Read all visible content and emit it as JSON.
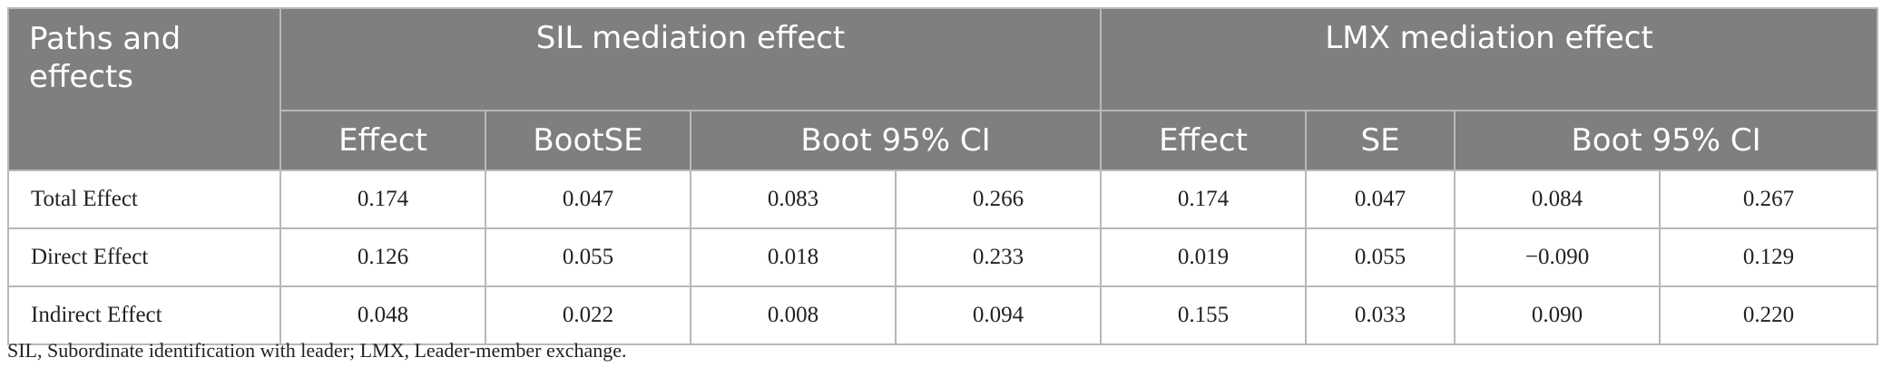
{
  "header": {
    "row_header": "Paths and effects",
    "groups": [
      "SIL mediation effect",
      "LMX mediation effect"
    ],
    "sil_subheaders": [
      "Effect",
      "BootSE",
      "Boot 95% CI"
    ],
    "lmx_subheaders": [
      "Effect",
      "SE",
      "Boot 95% CI"
    ]
  },
  "rows": [
    {
      "label": "Total Effect",
      "values": [
        "0.174",
        "0.047",
        "0.083",
        "0.266",
        "0.174",
        "0.047",
        "0.084",
        "0.267"
      ]
    },
    {
      "label": "Direct Effect",
      "values": [
        "0.126",
        "0.055",
        "0.018",
        "0.233",
        "0.019",
        "0.055",
        "−0.090",
        "0.129"
      ]
    },
    {
      "label": "Indirect Effect",
      "values": [
        "0.048",
        "0.022",
        "0.008",
        "0.094",
        "0.155",
        "0.033",
        "0.090",
        "0.220"
      ]
    }
  ],
  "footnote": "SIL, Subordinate identification with leader; LMX, Leader-member exchange."
}
